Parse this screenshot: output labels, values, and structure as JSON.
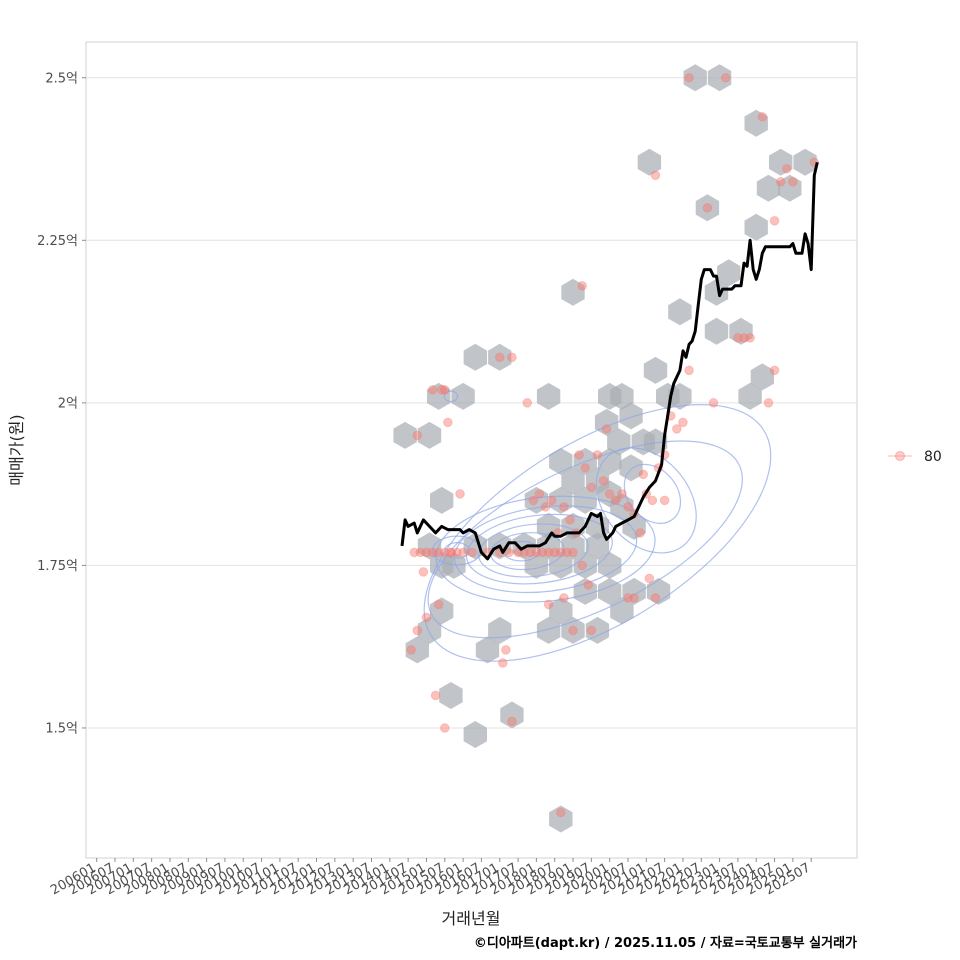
{
  "chart_data": {
    "type": "scatter",
    "xlabel": "거래년월",
    "ylabel": "매매가(원)",
    "caption": "©디아파트(dapt.kr) / 2025.11.05 / 자료=국토교통부 실거래가",
    "legend": {
      "position": "right",
      "entries": [
        {
          "label": "80",
          "color": "#f8766d"
        }
      ]
    },
    "x_ticks": [
      "200601",
      "200607",
      "200701",
      "200707",
      "200801",
      "200807",
      "200901",
      "200907",
      "201001",
      "201007",
      "201101",
      "201107",
      "201201",
      "201207",
      "201301",
      "201307",
      "201401",
      "201407",
      "201501",
      "201507",
      "201601",
      "201607",
      "201701",
      "201707",
      "201801",
      "201807",
      "201901",
      "201907",
      "202001",
      "202007",
      "202101",
      "202107",
      "202201",
      "202207",
      "202301",
      "202307",
      "202401",
      "202407",
      "202501",
      "202507"
    ],
    "y_ticks": [
      {
        "value": 1.5,
        "label": "1.5억"
      },
      {
        "value": 1.75,
        "label": "1.75억"
      },
      {
        "value": 2.0,
        "label": "2억"
      },
      {
        "value": 2.25,
        "label": "2.25억"
      },
      {
        "value": 2.5,
        "label": "2.5억"
      }
    ],
    "ylim": [
      1.3,
      2.555
    ],
    "xlim_month_index": [
      -3.5,
      249
    ],
    "series": [
      {
        "name": "trend",
        "type": "line",
        "color": "#000000",
        "points": [
          [
            100,
            1.78
          ],
          [
            101,
            1.82
          ],
          [
            102,
            1.81
          ],
          [
            104,
            1.815
          ],
          [
            105,
            1.8
          ],
          [
            107,
            1.82
          ],
          [
            109,
            1.81
          ],
          [
            111,
            1.8
          ],
          [
            113,
            1.81
          ],
          [
            115,
            1.805
          ],
          [
            117,
            1.805
          ],
          [
            119,
            1.805
          ],
          [
            120,
            1.8
          ],
          [
            122,
            1.805
          ],
          [
            124,
            1.8
          ],
          [
            126,
            1.77
          ],
          [
            128,
            1.76
          ],
          [
            130,
            1.775
          ],
          [
            132,
            1.78
          ],
          [
            133,
            1.77
          ],
          [
            135,
            1.785
          ],
          [
            137,
            1.785
          ],
          [
            139,
            1.775
          ],
          [
            141,
            1.78
          ],
          [
            143,
            1.78
          ],
          [
            145,
            1.78
          ],
          [
            147,
            1.785
          ],
          [
            149,
            1.8
          ],
          [
            150,
            1.795
          ],
          [
            152,
            1.795
          ],
          [
            154,
            1.8
          ],
          [
            156,
            1.8
          ],
          [
            158,
            1.8
          ],
          [
            160,
            1.81
          ],
          [
            162,
            1.83
          ],
          [
            164,
            1.825
          ],
          [
            165,
            1.83
          ],
          [
            166,
            1.8
          ],
          [
            167,
            1.79
          ],
          [
            169,
            1.8
          ],
          [
            170,
            1.81
          ],
          [
            172,
            1.815
          ],
          [
            174,
            1.82
          ],
          [
            176,
            1.825
          ],
          [
            177,
            1.835
          ],
          [
            179,
            1.855
          ],
          [
            181,
            1.87
          ],
          [
            183,
            1.88
          ],
          [
            185,
            1.905
          ],
          [
            186,
            1.95
          ],
          [
            187,
            1.98
          ],
          [
            188,
            2.01
          ],
          [
            189,
            2.03
          ],
          [
            191,
            2.05
          ],
          [
            192,
            2.08
          ],
          [
            193,
            2.07
          ],
          [
            194,
            2.09
          ],
          [
            195,
            2.095
          ],
          [
            196,
            2.11
          ],
          [
            197,
            2.15
          ],
          [
            198,
            2.19
          ],
          [
            199,
            2.205
          ],
          [
            200,
            2.205
          ],
          [
            201,
            2.205
          ],
          [
            202,
            2.195
          ],
          [
            203,
            2.195
          ],
          [
            204,
            2.165
          ],
          [
            205,
            2.175
          ],
          [
            206,
            2.175
          ],
          [
            208,
            2.175
          ],
          [
            209,
            2.18
          ],
          [
            211,
            2.18
          ],
          [
            212,
            2.215
          ],
          [
            213,
            2.21
          ],
          [
            214,
            2.25
          ],
          [
            215,
            2.205
          ],
          [
            216,
            2.19
          ],
          [
            217,
            2.205
          ],
          [
            218,
            2.23
          ],
          [
            219,
            2.24
          ],
          [
            221,
            2.24
          ],
          [
            223,
            2.24
          ],
          [
            225,
            2.24
          ],
          [
            227,
            2.24
          ],
          [
            228,
            2.245
          ],
          [
            229,
            2.23
          ],
          [
            231,
            2.23
          ],
          [
            232,
            2.26
          ],
          [
            233,
            2.245
          ],
          [
            234,
            2.205
          ],
          [
            235,
            2.35
          ],
          [
            236,
            2.37
          ]
        ]
      }
    ],
    "points": [
      [
        115,
        1.97
      ],
      [
        120,
        1.77
      ],
      [
        118,
        1.77
      ],
      [
        116,
        1.77
      ],
      [
        114,
        1.77
      ],
      [
        112,
        1.77
      ],
      [
        110,
        1.77
      ],
      [
        108,
        1.77
      ],
      [
        106,
        1.77
      ],
      [
        104,
        1.77
      ],
      [
        107,
        1.74
      ],
      [
        103,
        1.62
      ],
      [
        105,
        1.65
      ],
      [
        108,
        1.67
      ],
      [
        111,
        1.55
      ],
      [
        112,
        1.69
      ],
      [
        114,
        1.5
      ],
      [
        116,
        1.77
      ],
      [
        123,
        1.77
      ],
      [
        119,
        1.86
      ],
      [
        110,
        2.02
      ],
      [
        113,
        2.02
      ],
      [
        105,
        1.95
      ],
      [
        114,
        2.02
      ],
      [
        128,
        1.77
      ],
      [
        132,
        1.77
      ],
      [
        135,
        1.77
      ],
      [
        138,
        1.77
      ],
      [
        140,
        1.77
      ],
      [
        142,
        1.77
      ],
      [
        144,
        1.77
      ],
      [
        146,
        1.77
      ],
      [
        148,
        1.77
      ],
      [
        150,
        1.77
      ],
      [
        152,
        1.77
      ],
      [
        154,
        1.77
      ],
      [
        156,
        1.77
      ],
      [
        134,
        1.62
      ],
      [
        133,
        1.6
      ],
      [
        136,
        1.51
      ],
      [
        132,
        2.07
      ],
      [
        136,
        2.07
      ],
      [
        141,
        2.0
      ],
      [
        143,
        1.85
      ],
      [
        145,
        1.86
      ],
      [
        147,
        1.84
      ],
      [
        149,
        1.85
      ],
      [
        151,
        1.8
      ],
      [
        153,
        1.84
      ],
      [
        155,
        1.82
      ],
      [
        157,
        1.8
      ],
      [
        159,
        1.75
      ],
      [
        161,
        1.72
      ],
      [
        148,
        1.69
      ],
      [
        153,
        1.7
      ],
      [
        156,
        1.65
      ],
      [
        162,
        1.65
      ],
      [
        152,
        1.37
      ],
      [
        158,
        1.92
      ],
      [
        160,
        1.9
      ],
      [
        162,
        1.87
      ],
      [
        164,
        1.92
      ],
      [
        166,
        1.88
      ],
      [
        168,
        1.86
      ],
      [
        170,
        1.85
      ],
      [
        172,
        1.86
      ],
      [
        174,
        1.84
      ],
      [
        176,
        1.83
      ],
      [
        178,
        1.8
      ],
      [
        180,
        1.86
      ],
      [
        182,
        1.85
      ],
      [
        184,
        1.9
      ],
      [
        186,
        1.92
      ],
      [
        188,
        1.98
      ],
      [
        190,
        1.96
      ],
      [
        192,
        1.97
      ],
      [
        179,
        1.89
      ],
      [
        181,
        1.73
      ],
      [
        183,
        1.7
      ],
      [
        176,
        1.7
      ],
      [
        174,
        1.7
      ],
      [
        186,
        1.85
      ],
      [
        159,
        2.18
      ],
      [
        194,
        2.05
      ],
      [
        200,
        2.3
      ],
      [
        194,
        2.5
      ],
      [
        206,
        2.5
      ],
      [
        183,
        2.35
      ],
      [
        218,
        2.44
      ],
      [
        222,
        2.28
      ],
      [
        224,
        2.34
      ],
      [
        226,
        2.36
      ],
      [
        228,
        2.34
      ],
      [
        214,
        2.1
      ],
      [
        212,
        2.1
      ],
      [
        210,
        2.1
      ],
      [
        220,
        2.0
      ],
      [
        222,
        2.05
      ],
      [
        235,
        2.37
      ],
      [
        202,
        2.0
      ],
      [
        167,
        1.96
      ]
    ],
    "hexbins": [
      [
        196,
        2.5
      ],
      [
        204,
        2.5
      ],
      [
        216,
        2.43
      ],
      [
        224,
        2.37
      ],
      [
        220,
        2.33
      ],
      [
        227,
        2.33
      ],
      [
        232,
        2.37
      ],
      [
        200,
        2.3
      ],
      [
        216,
        2.27
      ],
      [
        181,
        2.37
      ],
      [
        207,
        2.2
      ],
      [
        203,
        2.17
      ],
      [
        156,
        2.17
      ],
      [
        191,
        2.14
      ],
      [
        203,
        2.11
      ],
      [
        211,
        2.11
      ],
      [
        124,
        2.07
      ],
      [
        132,
        2.07
      ],
      [
        112,
        2.01
      ],
      [
        120,
        2.01
      ],
      [
        148,
        2.01
      ],
      [
        168,
        2.01
      ],
      [
        172,
        2.01
      ],
      [
        183,
        2.05
      ],
      [
        187,
        2.01
      ],
      [
        191,
        2.01
      ],
      [
        214,
        2.01
      ],
      [
        218,
        2.04
      ],
      [
        101,
        1.95
      ],
      [
        109,
        1.95
      ],
      [
        167,
        1.97
      ],
      [
        175,
        1.98
      ],
      [
        179,
        1.94
      ],
      [
        171,
        1.94
      ],
      [
        175,
        1.9
      ],
      [
        183,
        1.94
      ],
      [
        152,
        1.91
      ],
      [
        160,
        1.91
      ],
      [
        168,
        1.91
      ],
      [
        113,
        1.85
      ],
      [
        144,
        1.85
      ],
      [
        152,
        1.85
      ],
      [
        160,
        1.85
      ],
      [
        148,
        1.81
      ],
      [
        156,
        1.81
      ],
      [
        164,
        1.81
      ],
      [
        176,
        1.81
      ],
      [
        172,
        1.84
      ],
      [
        168,
        1.86
      ],
      [
        156,
        1.88
      ],
      [
        164,
        1.88
      ],
      [
        109,
        1.78
      ],
      [
        124,
        1.78
      ],
      [
        132,
        1.78
      ],
      [
        140,
        1.78
      ],
      [
        148,
        1.78
      ],
      [
        156,
        1.78
      ],
      [
        164,
        1.78
      ],
      [
        168,
        1.75
      ],
      [
        160,
        1.75
      ],
      [
        152,
        1.75
      ],
      [
        144,
        1.75
      ],
      [
        117,
        1.75
      ],
      [
        113,
        1.75
      ],
      [
        160,
        1.71
      ],
      [
        168,
        1.71
      ],
      [
        176,
        1.71
      ],
      [
        184,
        1.71
      ],
      [
        172,
        1.68
      ],
      [
        152,
        1.68
      ],
      [
        148,
        1.65
      ],
      [
        156,
        1.65
      ],
      [
        164,
        1.65
      ],
      [
        113,
        1.68
      ],
      [
        109,
        1.65
      ],
      [
        105,
        1.62
      ],
      [
        132,
        1.65
      ],
      [
        128,
        1.62
      ],
      [
        116,
        1.55
      ],
      [
        124,
        1.49
      ],
      [
        136,
        1.52
      ],
      [
        152,
        1.36
      ]
    ],
    "density_contours": [
      {
        "cx": 147,
        "cy": 1.775,
        "rx": 36,
        "ry": 0.08,
        "rot": -0.1
      },
      {
        "cx": 147,
        "cy": 1.775,
        "rx": 30,
        "ry": 0.065,
        "rot": -0.12
      },
      {
        "cx": 145,
        "cy": 1.775,
        "rx": 24,
        "ry": 0.052,
        "rot": -0.12
      },
      {
        "cx": 143,
        "cy": 1.773,
        "rx": 18,
        "ry": 0.04,
        "rot": -0.1
      },
      {
        "cx": 141,
        "cy": 1.772,
        "rx": 12,
        "ry": 0.028,
        "rot": -0.08
      },
      {
        "cx": 139,
        "cy": 1.772,
        "rx": 6,
        "ry": 0.015,
        "rot": 0
      },
      {
        "cx": 118,
        "cy": 1.773,
        "rx": 8,
        "ry": 0.022,
        "rot": 0
      },
      {
        "cx": 118,
        "cy": 1.773,
        "rx": 4,
        "ry": 0.012,
        "rot": 0
      },
      {
        "cx": 180,
        "cy": 1.85,
        "rx": 14,
        "ry": 0.09,
        "rot": -0.7
      },
      {
        "cx": 182,
        "cy": 1.86,
        "rx": 8,
        "ry": 0.05,
        "rot": -0.7
      },
      {
        "cx": 164,
        "cy": 1.8,
        "rx": 64,
        "ry": 0.14,
        "rot": -0.55
      },
      {
        "cx": 160,
        "cy": 1.79,
        "rx": 56,
        "ry": 0.11,
        "rot": -0.45
      },
      {
        "cx": 116,
        "cy": 2.01,
        "rx": 2.2,
        "ry": 0.008,
        "rot": 0
      }
    ]
  }
}
